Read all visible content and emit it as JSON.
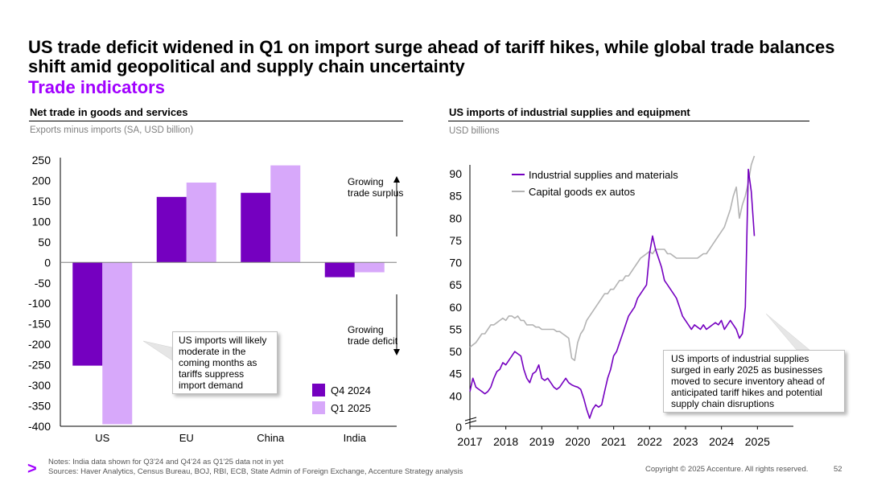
{
  "header": {
    "title": "US trade deficit widened in Q1 on import surge ahead of tariff hikes, while global trade balances shift amid geopolitical and supply chain uncertainty",
    "subtitle": "Trade indicators"
  },
  "left_panel": {
    "title": "Net trade in goods and services",
    "subtitle": "Exports minus imports (SA, USD billion)",
    "surplus_label": "Growing trade surplus",
    "deficit_label": "Growing trade deficit",
    "callout": "US imports will likely moderate in the coming months as tariffs suppress import demand"
  },
  "right_panel": {
    "title": "US imports of industrial supplies and equipment",
    "subtitle": "USD billions",
    "callout": "US imports of industrial supplies surged in early 2025 as businesses moved to secure inventory ahead of anticipated tariff hikes and potential supply chain disruptions"
  },
  "footer": {
    "notes": "Notes: India data shown for Q3'24 and Q4'24 as Q1'25 data not in yet",
    "sources": "Sources: Haver Analytics, Census Bureau, BOJ, RBI, ECB, State Admin of Foreign Exchange, Accenture Strategy analysis",
    "copyright": "Copyright © 2025 Accenture. All rights reserved.",
    "page": "52",
    "logo": ">"
  },
  "colors": {
    "accent": "#A100FF",
    "series_dark": "#7500C0",
    "series_light": "#D7A8FA",
    "line_purple": "#7500C0",
    "line_gray": "#B3B3B3"
  },
  "chart_data": [
    {
      "type": "bar",
      "title": "Net trade in goods and services",
      "ylabel": "Exports minus imports (SA, USD billion)",
      "categories": [
        "US",
        "EU",
        "China",
        "India"
      ],
      "series": [
        {
          "name": "Q4 2024",
          "values": [
            -252,
            160,
            170,
            -36
          ]
        },
        {
          "name": "Q1 2025",
          "values": [
            -395,
            195,
            237,
            -24
          ]
        }
      ],
      "ylim": [
        -400,
        250
      ],
      "yticks": [
        250,
        200,
        150,
        100,
        50,
        0,
        -50,
        -100,
        -150,
        -200,
        -250,
        -300,
        -350,
        -400
      ],
      "legend": "bottom-right"
    },
    {
      "type": "line",
      "title": "US imports of industrial supplies and equipment",
      "ylabel": "USD billions",
      "x_start": 2017.0,
      "x_step": 0.0833,
      "xlim": [
        2017,
        2026
      ],
      "xticks": [
        2017,
        2018,
        2019,
        2020,
        2021,
        2022,
        2023,
        2024,
        2025
      ],
      "ylim": [
        35,
        93
      ],
      "yticks": [
        90,
        85,
        80,
        75,
        70,
        65,
        60,
        55,
        50,
        45,
        40
      ],
      "y_zero_label": "0",
      "axis_break": true,
      "legend": "top-left",
      "series": [
        {
          "name": "Industrial supplies and materials",
          "values": [
            41,
            44,
            42,
            41.5,
            41,
            40.5,
            41,
            42,
            44,
            45.5,
            46,
            47.5,
            47,
            48,
            49,
            50,
            49.5,
            49,
            46,
            44,
            43,
            45,
            45.5,
            47,
            44,
            43.5,
            44,
            43,
            42,
            41.5,
            42,
            43,
            44,
            43,
            42.5,
            42.2,
            42,
            41.5,
            39.5,
            37,
            35,
            37,
            38,
            37.5,
            38,
            41,
            44,
            46,
            49,
            50,
            52,
            54,
            56,
            58,
            59,
            60,
            62,
            63,
            64,
            65,
            72,
            76,
            73,
            71,
            69,
            66,
            65,
            64,
            63,
            62,
            60,
            58,
            57,
            56,
            55,
            56,
            55.5,
            55,
            56,
            55,
            55.5,
            56,
            56.5,
            56,
            57,
            55,
            56,
            57,
            56,
            55,
            53,
            54,
            60,
            91,
            86,
            76
          ]
        },
        {
          "name": "Capital goods ex autos",
          "values": [
            51,
            51.5,
            52,
            53,
            54,
            54,
            55,
            56,
            56,
            56.5,
            57,
            57.5,
            57,
            58,
            58,
            57.5,
            58,
            57,
            57,
            56,
            56,
            56,
            55.5,
            55.5,
            55,
            55,
            55,
            55,
            55,
            54.5,
            54.5,
            54,
            53.5,
            53,
            48.5,
            48,
            52,
            54,
            55,
            57,
            58,
            59,
            60,
            61,
            62,
            63,
            63,
            64,
            64,
            65,
            66,
            66,
            67,
            67,
            68,
            69,
            70,
            71,
            71.5,
            72,
            72.5,
            72,
            73,
            73,
            73,
            73,
            72,
            72,
            71.5,
            71,
            71,
            71,
            71,
            71,
            71,
            71,
            71,
            71.5,
            72,
            72,
            73,
            74,
            75,
            76,
            77,
            78,
            80,
            82,
            85,
            87,
            80,
            83,
            85,
            88,
            92,
            94
          ]
        }
      ]
    }
  ]
}
